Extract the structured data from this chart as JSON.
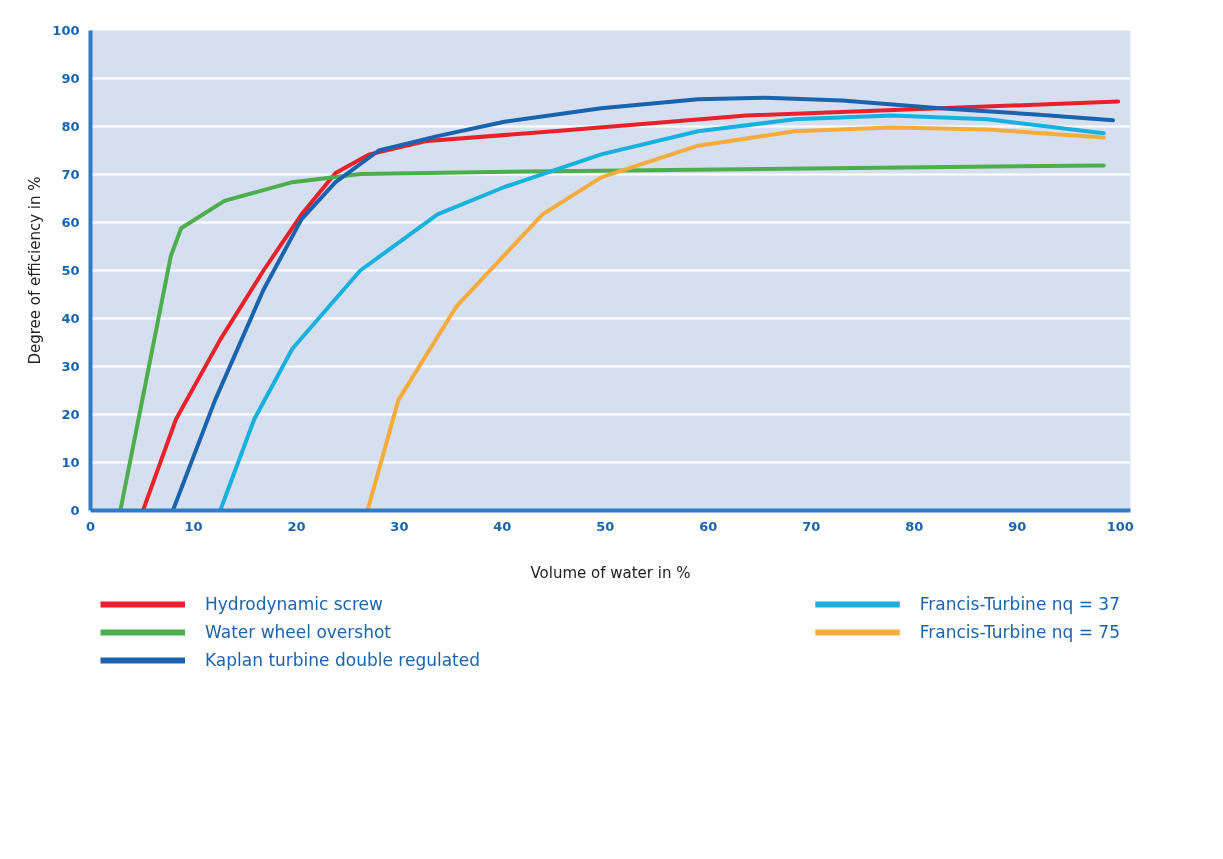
{
  "chart_data": {
    "type": "line",
    "xlabel": "Volume of water in %",
    "ylabel": "Degree of efficiency in %",
    "xlim": [
      0,
      101
    ],
    "ylim": [
      0,
      100
    ],
    "xticks": [
      0,
      10,
      20,
      30,
      40,
      50,
      60,
      70,
      80,
      90,
      100
    ],
    "yticks": [
      0,
      10,
      20,
      30,
      40,
      50,
      60,
      70,
      80,
      90,
      100
    ],
    "grid": "y",
    "legend": "bottom",
    "marker": "none",
    "line_style": "solid",
    "series": [
      {
        "name": "Hydrodynamic screw",
        "color": "#e8222a",
        "x": [
          5.1,
          8.3,
          12.6,
          16.8,
          20.5,
          23.8,
          27.1,
          32.7,
          45,
          63.7,
          82.5,
          99.8
        ],
        "values": [
          0,
          19,
          35.6,
          50,
          61.7,
          70.3,
          74.2,
          77,
          79,
          82.3,
          83.8,
          85.2
        ]
      },
      {
        "name": "Water wheel overshot",
        "color": "#4cae4c",
        "x": [
          2.9,
          7.8,
          8.8,
          13,
          19.6,
          26.2,
          45,
          98.4
        ],
        "values": [
          0,
          53,
          58.8,
          64.5,
          68.4,
          70.1,
          70.7,
          71.9
        ]
      },
      {
        "name": "Kaplan turbine double regulated",
        "color": "#1a63ad",
        "x": [
          8,
          12.1,
          16.8,
          20.5,
          23.8,
          28,
          33.7,
          40.2,
          49.6,
          59,
          65.6,
          73,
          82.5,
          91.8,
          99.3
        ],
        "values": [
          0,
          23,
          46,
          60.7,
          68.4,
          75,
          78,
          81,
          83.8,
          85.7,
          86,
          85.4,
          83.8,
          82.5,
          81.3
        ]
      },
      {
        "name": "Francis-Turbine nq = 37",
        "color": "#16b1dd",
        "x": [
          12.6,
          15.9,
          19.6,
          26.2,
          33.7,
          40.2,
          49.6,
          59,
          68.4,
          77.8,
          87.1,
          98.4
        ],
        "values": [
          0,
          19,
          33.7,
          50,
          61.7,
          67.4,
          74.2,
          79,
          81.5,
          82.3,
          81.5,
          78.6
        ]
      },
      {
        "name": "Francis-Turbine nq = 75",
        "color": "#f5ac3d",
        "x": [
          26.9,
          29.9,
          35.5,
          43.9,
          49.6,
          59,
          68.4,
          77.8,
          87.1,
          98.4
        ],
        "values": [
          0,
          23,
          42.4,
          61.7,
          69.4,
          76,
          79,
          79.8,
          79.4,
          77.7
        ]
      }
    ]
  }
}
